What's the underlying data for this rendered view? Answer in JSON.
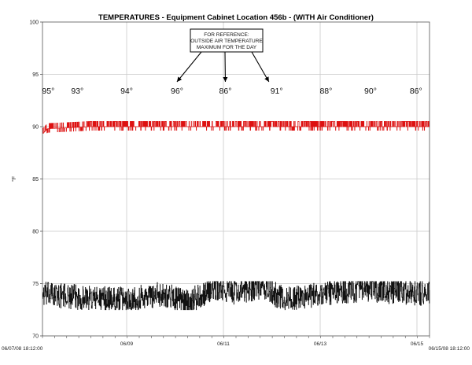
{
  "chart_data": {
    "type": "line",
    "title": "TEMPERATURES  -  Equipment Cabinet Location 456b  -  (WITH Air Conditioner)",
    "ylabel": "°F",
    "xlabel": "",
    "ylim": [
      70,
      100
    ],
    "yticks": [
      70,
      75,
      80,
      85,
      90,
      95,
      100
    ],
    "xrange_days": [
      0,
      8
    ],
    "x_start_label": "06/07/08 18:12:00",
    "x_end_label": "06/15/08 18:12:00",
    "date_ticks": [
      {
        "label": "06/09",
        "day": 1.74
      },
      {
        "label": "06/11",
        "day": 3.74
      },
      {
        "label": "06/13",
        "day": 5.74
      },
      {
        "label": "06/15",
        "day": 7.74
      }
    ],
    "grid": true,
    "legend": "none",
    "outside_max_temps": [
      {
        "label": "95°",
        "day": 0.12
      },
      {
        "label": "93°",
        "day": 0.72
      },
      {
        "label": "94°",
        "day": 1.74
      },
      {
        "label": "96°",
        "day": 2.78
      },
      {
        "label": "86°",
        "day": 3.78
      },
      {
        "label": "91°",
        "day": 4.84
      },
      {
        "label": "88°",
        "day": 5.86
      },
      {
        "label": "90°",
        "day": 6.78
      },
      {
        "label": "86°",
        "day": 7.72
      }
    ],
    "reference_note": [
      "FOR REFERENCE:",
      "OUTSIDE AIR TEMPERATURE",
      "MAXIMUM FOR THE DAY"
    ],
    "arrow_targets_day": [
      2.78,
      3.78,
      4.68
    ],
    "series": [
      {
        "color": "#dd1111",
        "baseline": 90,
        "range": [
          89,
          91
        ],
        "points": [
          [
            0,
            89.3
          ],
          [
            0.1,
            89.8
          ],
          [
            1,
            90
          ],
          [
            2,
            90
          ],
          [
            3,
            90
          ],
          [
            4,
            90
          ],
          [
            5,
            90
          ],
          [
            6,
            90
          ],
          [
            7,
            90
          ],
          [
            8,
            90
          ]
        ]
      },
      {
        "color": "#111111",
        "baseline": 74,
        "range": [
          72.5,
          75.2
        ],
        "points": [
          [
            0,
            74
          ],
          [
            0.5,
            73.8
          ],
          [
            1,
            73.6
          ],
          [
            1.7,
            73.5
          ],
          [
            2.5,
            74
          ],
          [
            3,
            73.2
          ],
          [
            3.5,
            74.5
          ],
          [
            4,
            74.2
          ],
          [
            4.5,
            74.7
          ],
          [
            5,
            73.5
          ],
          [
            5.5,
            73.8
          ],
          [
            6,
            74.2
          ],
          [
            6.5,
            74.4
          ],
          [
            7,
            74.3
          ],
          [
            7.5,
            74.2
          ],
          [
            8,
            74
          ]
        ]
      }
    ]
  }
}
